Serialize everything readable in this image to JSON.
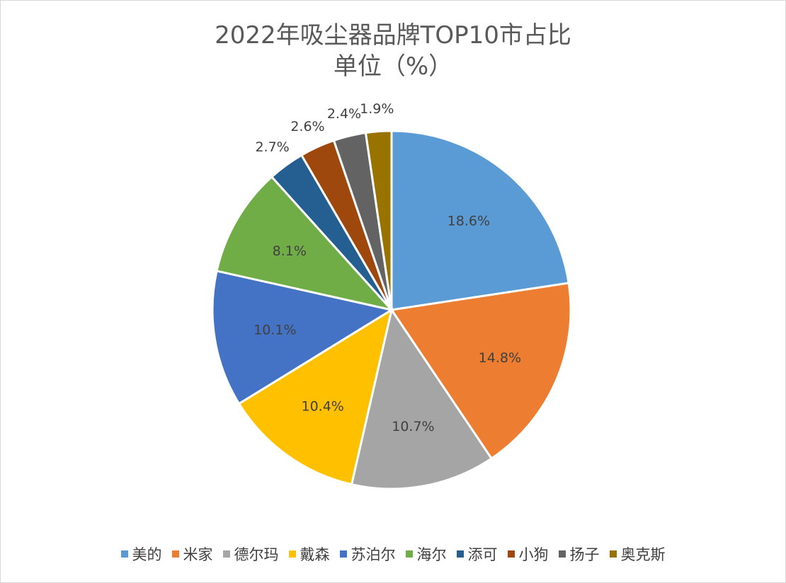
{
  "chart_data": {
    "type": "pie",
    "title": "2022年吸尘器品牌TOP10市占比",
    "subtitle": "单位（%）",
    "categories": [
      "美的",
      "米家",
      "德尔玛",
      "戴森",
      "苏泊尔",
      "海尔",
      "添可",
      "小狗",
      "扬子",
      "奥克斯"
    ],
    "values": [
      18.6,
      14.8,
      10.7,
      10.4,
      10.1,
      8.1,
      2.7,
      2.6,
      2.4,
      1.9
    ],
    "data_labels": [
      "18.6%",
      "14.8%",
      "10.7%",
      "10.4%",
      "10.1%",
      "8.1%",
      "2.7%",
      "2.6%",
      "2.4%",
      "1.9%"
    ],
    "colors": [
      "#5B9BD5",
      "#ED7D31",
      "#A5A5A5",
      "#FFC000",
      "#4472C4",
      "#70AD47",
      "#255E91",
      "#9E480E",
      "#636363",
      "#997300"
    ],
    "start_angle": "12 o'clock",
    "direction": "clockwise",
    "legend_position": "bottom"
  }
}
